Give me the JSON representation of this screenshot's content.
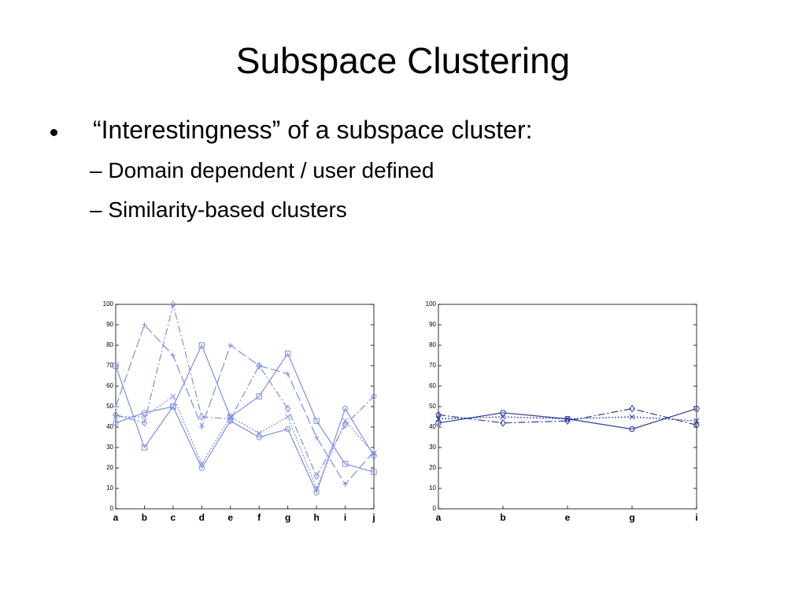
{
  "title": "Subspace Clustering",
  "bullets": [
    {
      "text": "“Interestingness” of a subspace cluster:",
      "sub": [
        "– Domain dependent / user defined",
        "– Similarity-based clusters"
      ]
    }
  ],
  "chart_data": [
    {
      "type": "line",
      "categories": [
        "a",
        "b",
        "c",
        "d",
        "e",
        "f",
        "g",
        "h",
        "i",
        "j"
      ],
      "ylim": [
        0,
        100
      ],
      "yticks": [
        0,
        10,
        20,
        30,
        40,
        50,
        60,
        70,
        80,
        90,
        100
      ],
      "series": [
        {
          "color": "#7c8fe6",
          "dash": "solid",
          "marker": "square",
          "values": [
            70,
            30,
            50,
            80,
            45,
            55,
            76,
            43,
            22,
            18
          ]
        },
        {
          "color": "#7c8fe6",
          "dash": "dashed",
          "marker": "plus",
          "values": [
            50,
            90,
            75,
            40,
            80,
            70,
            66,
            35,
            12,
            28
          ]
        },
        {
          "color": "#7c8fe6",
          "dash": "dashdot",
          "marker": "diamond",
          "values": [
            46,
            42,
            100,
            45,
            44,
            70,
            49,
            16,
            41,
            55
          ]
        },
        {
          "color": "#7c8fe6",
          "dash": "solid",
          "marker": "circle",
          "values": [
            42,
            47,
            50,
            20,
            43,
            35,
            39,
            8,
            49,
            26
          ]
        },
        {
          "color": "#7c8fe6",
          "dash": "dotted",
          "marker": "x",
          "values": [
            45,
            45,
            55,
            22,
            45,
            37,
            45,
            10,
            43,
            27
          ]
        }
      ]
    },
    {
      "type": "line",
      "categories": [
        "a",
        "b",
        "e",
        "g",
        "i"
      ],
      "ylim": [
        0,
        100
      ],
      "yticks": [
        0,
        10,
        20,
        30,
        40,
        50,
        60,
        70,
        80,
        90,
        100
      ],
      "series": [
        {
          "color": "#2a3c9e",
          "dash": "solid",
          "marker": "circle",
          "values": [
            42,
            47,
            44,
            39,
            49
          ]
        },
        {
          "color": "#2a3c9e",
          "dash": "dashdot",
          "marker": "diamond",
          "values": [
            46,
            42,
            43,
            49,
            41
          ]
        },
        {
          "color": "#2a3c9e",
          "dash": "dotted",
          "marker": "x",
          "values": [
            44,
            45,
            44,
            45,
            43
          ]
        }
      ]
    }
  ]
}
